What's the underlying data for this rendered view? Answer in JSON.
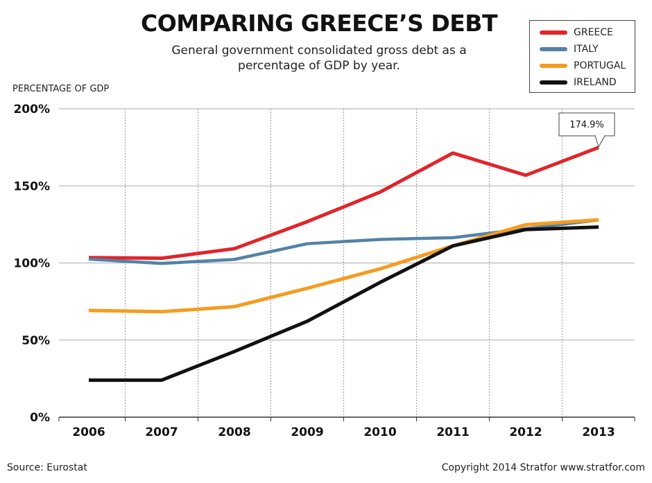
{
  "chart_data": {
    "type": "line",
    "title": "COMPARING GREECE’S DEBT",
    "subtitle": "General government consolidated gross debt as a percentage of GDP by year.",
    "ylabel": "PERCENTAGE OF GDP",
    "xlabel": "",
    "x": [
      "2006",
      "2007",
      "2008",
      "2009",
      "2010",
      "2011",
      "2012",
      "2013"
    ],
    "ylim": [
      0,
      200
    ],
    "yticks": [
      0,
      50,
      100,
      150,
      200
    ],
    "ytick_labels": [
      "0%",
      "50%",
      "100%",
      "150%",
      "200%"
    ],
    "grid": "horizontal solid, vertical dotted",
    "legend_position": "top-right",
    "series": [
      {
        "name": "GREECE",
        "color": "#e0252b",
        "values": [
          103.5,
          103.1,
          109.3,
          126.8,
          146.0,
          171.3,
          156.9,
          174.9
        ]
      },
      {
        "name": "ITALY",
        "color": "#5482a8",
        "values": [
          102.5,
          99.7,
          102.3,
          112.5,
          115.3,
          116.4,
          122.2,
          127.9
        ]
      },
      {
        "name": "PORTUGAL",
        "color": "#f59c20",
        "values": [
          69.2,
          68.4,
          71.7,
          83.6,
          96.2,
          111.1,
          124.8,
          128.0
        ]
      },
      {
        "name": "IRELAND",
        "color": "#111111",
        "values": [
          24.0,
          24.0,
          42.6,
          62.2,
          87.4,
          111.1,
          121.7,
          123.3
        ]
      }
    ],
    "annotation": {
      "text": "174.9%",
      "series": "GREECE",
      "x": "2013"
    }
  },
  "footer": {
    "source": "Source: Eurostat",
    "copyright": "Copyright 2014 Stratfor www.stratfor.com"
  }
}
